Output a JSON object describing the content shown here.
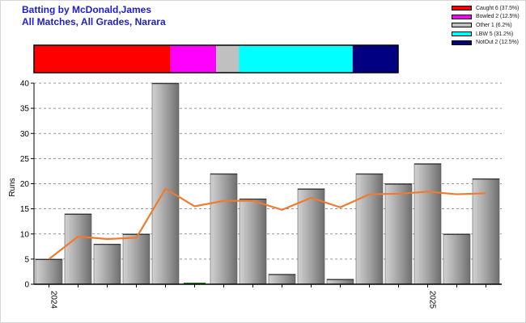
{
  "title_line1": "Batting by McDonald,James",
  "title_line2": "All Matches, All Grades, Narara",
  "legend": [
    {
      "label": "Caught 6 (37.5%)",
      "color": "#ff0000",
      "fraction": 0.375
    },
    {
      "label": "Bowled 2 (12.5%)",
      "color": "#ff00ff",
      "fraction": 0.125
    },
    {
      "label": "Other 1 (6.2%)",
      "color": "#c0c0c0",
      "fraction": 0.0625
    },
    {
      "label": "LBW 5 (31.2%)",
      "color": "#00ffff",
      "fraction": 0.3125
    },
    {
      "label": "NotOut 2 (12.5%)",
      "color": "#000080",
      "fraction": 0.125
    }
  ],
  "chart_data": {
    "type": "bar",
    "ylabel": "Runs",
    "ylim": [
      0,
      40
    ],
    "yticks": [
      0,
      5,
      10,
      15,
      20,
      25,
      30,
      35,
      40
    ],
    "grid": "horizontal dashed",
    "xtick_labels": [
      {
        "label": "2024",
        "at_index": 0
      },
      {
        "label": "2025",
        "at_index": 13
      }
    ],
    "series": [
      {
        "type": "bar",
        "values": [
          5,
          14,
          8,
          10,
          40,
          0,
          22,
          17,
          2,
          19,
          1,
          22,
          20,
          24,
          10,
          21
        ],
        "color": "#9a9a9a"
      },
      {
        "type": "line",
        "values": [
          5,
          9.5,
          9,
          9.25,
          19,
          15.5,
          16.6,
          16.6,
          14.8,
          17.2,
          15.3,
          17.9,
          18.0,
          18.4,
          17.9,
          18.1
        ],
        "color": "#f07a30"
      }
    ]
  }
}
